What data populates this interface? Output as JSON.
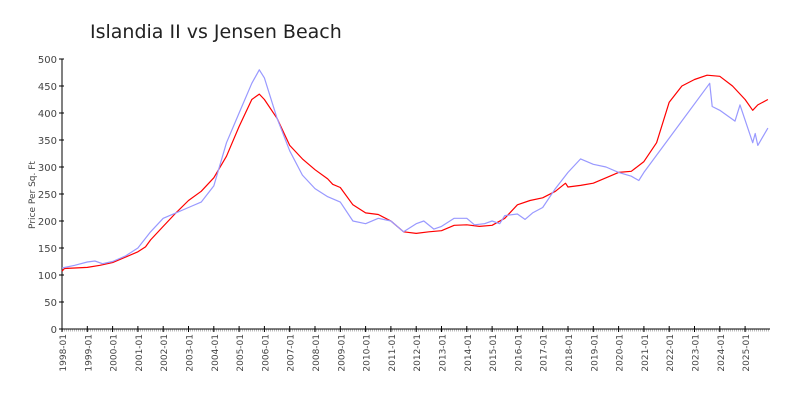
{
  "chart_data": {
    "type": "line",
    "title": "Islandia II vs Jensen Beach",
    "xlabel": "",
    "ylabel": "Price Per Sq. Ft",
    "ylim": [
      0,
      500
    ],
    "xlim": [
      1998.0,
      2025.95
    ],
    "y_ticks": [
      0,
      50,
      100,
      150,
      200,
      250,
      300,
      350,
      400,
      450,
      500
    ],
    "x_ticks": [
      "1998-01",
      "1999-01",
      "2000-01",
      "2001-01",
      "2002-01",
      "2003-01",
      "2004-01",
      "2005-01",
      "2006-01",
      "2007-01",
      "2008-01",
      "2009-01",
      "2010-01",
      "2011-01",
      "2012-01",
      "2013-01",
      "2014-01",
      "2015-01",
      "2016-01",
      "2017-01",
      "2018-01",
      "2019-01",
      "2020-01",
      "2021-01",
      "2022-01",
      "2023-01",
      "2024-01",
      "2025-01"
    ],
    "grid": false,
    "legend": "none",
    "series": [
      {
        "color": "#ff0000",
        "x": [
          1998.0,
          1998.1,
          1998.5,
          1999.0,
          1999.5,
          2000.0,
          2000.5,
          2001.0,
          2001.3,
          2001.5,
          2002.0,
          2002.5,
          2003.0,
          2003.5,
          2004.0,
          2004.5,
          2005.0,
          2005.5,
          2005.8,
          2006.0,
          2006.5,
          2007.0,
          2007.5,
          2008.0,
          2008.5,
          2008.7,
          2009.0,
          2009.5,
          2010.0,
          2010.5,
          2011.0,
          2011.5,
          2012.0,
          2012.5,
          2013.0,
          2013.5,
          2014.0,
          2014.5,
          2015.0,
          2015.5,
          2016.0,
          2016.5,
          2017.0,
          2017.5,
          2017.9,
          2018.0,
          2018.5,
          2019.0,
          2019.5,
          2020.0,
          2020.5,
          2021.0,
          2021.5,
          2022.0,
          2022.5,
          2023.0,
          2023.5,
          2024.0,
          2024.5,
          2025.0,
          2025.3,
          2025.5,
          2025.9
        ],
        "values": [
          107,
          112,
          113,
          114,
          118,
          123,
          133,
          143,
          152,
          165,
          190,
          215,
          238,
          255,
          280,
          320,
          375,
          425,
          435,
          425,
          390,
          340,
          315,
          295,
          278,
          268,
          262,
          230,
          215,
          212,
          200,
          180,
          177,
          180,
          182,
          192,
          193,
          190,
          192,
          205,
          230,
          238,
          243,
          255,
          270,
          263,
          266,
          270,
          280,
          290,
          292,
          310,
          345,
          420,
          450,
          462,
          470,
          468,
          450,
          425,
          405,
          415,
          425
        ]
      },
      {
        "color": "#9999ff",
        "x": [
          1998.0,
          1998.5,
          1999.0,
          1999.3,
          1999.6,
          2000.0,
          2000.5,
          2001.0,
          2001.5,
          2002.0,
          2002.5,
          2003.0,
          2003.5,
          2004.0,
          2004.5,
          2005.0,
          2005.5,
          2005.8,
          2006.0,
          2006.3,
          2006.5,
          2007.0,
          2007.5,
          2008.0,
          2008.5,
          2009.0,
          2009.5,
          2010.0,
          2010.5,
          2011.0,
          2011.5,
          2012.0,
          2012.3,
          2012.7,
          2013.0,
          2013.5,
          2014.0,
          2014.3,
          2014.7,
          2015.0,
          2015.3,
          2015.5,
          2016.0,
          2016.3,
          2016.6,
          2017.0,
          2017.5,
          2018.0,
          2018.5,
          2019.0,
          2019.5,
          2020.0,
          2020.5,
          2020.8,
          2021.0,
          2023.6,
          2023.7,
          2024.0,
          2024.6,
          2024.8,
          2025.3,
          2025.4,
          2025.5,
          2025.9
        ],
        "values": [
          113,
          118,
          124,
          126,
          121,
          125,
          135,
          150,
          180,
          205,
          215,
          225,
          235,
          265,
          345,
          400,
          455,
          480,
          465,
          420,
          390,
          330,
          285,
          260,
          245,
          235,
          200,
          195,
          205,
          200,
          180,
          195,
          200,
          185,
          190,
          205,
          205,
          193,
          195,
          200,
          195,
          210,
          213,
          203,
          215,
          225,
          260,
          290,
          315,
          305,
          300,
          290,
          283,
          275,
          290,
          455,
          412,
          405,
          385,
          415,
          345,
          362,
          340,
          372
        ]
      }
    ]
  }
}
